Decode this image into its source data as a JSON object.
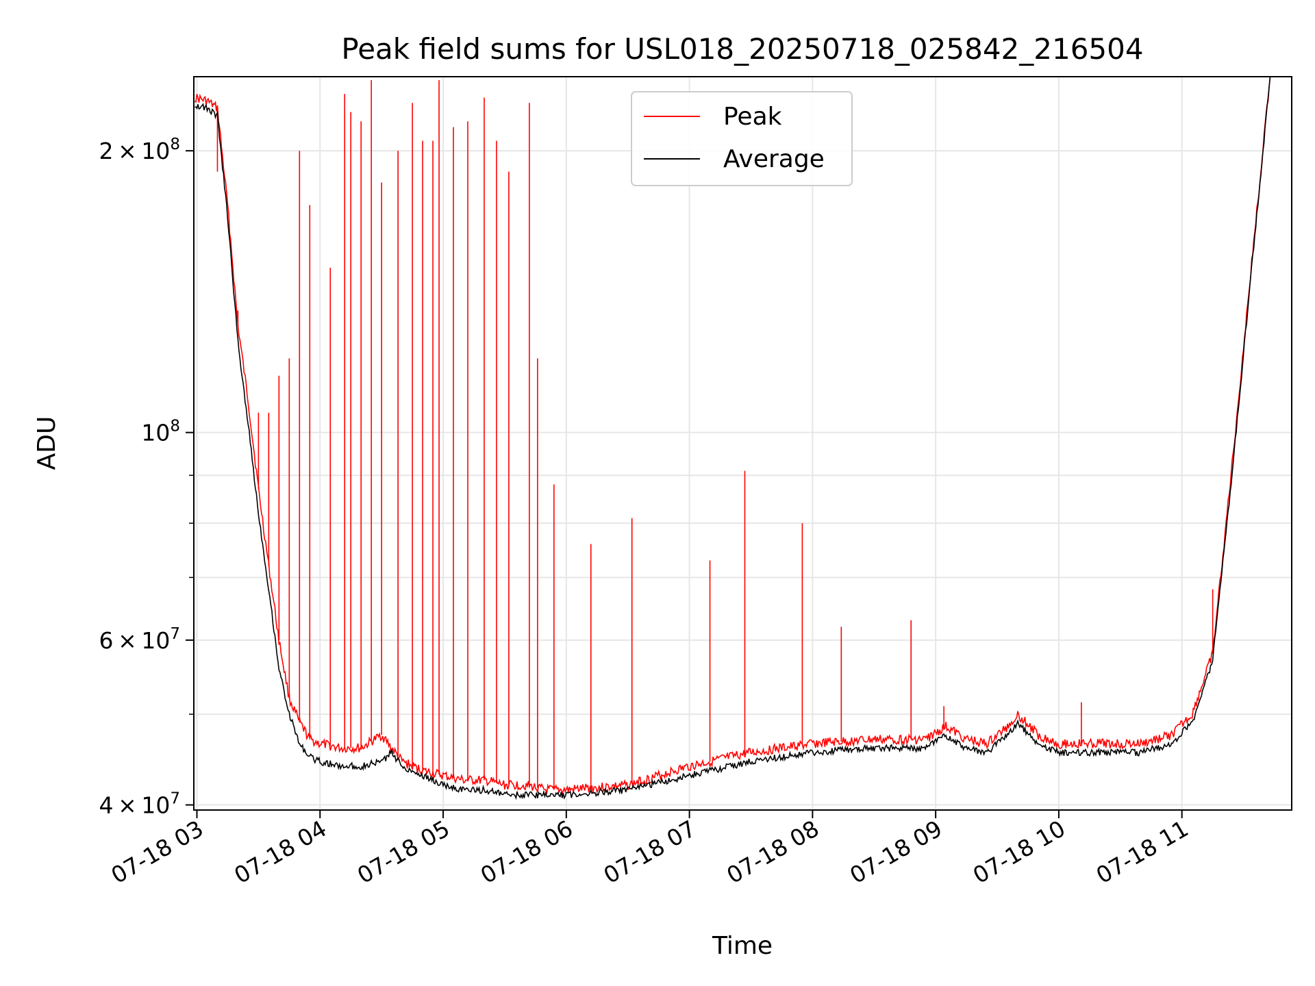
{
  "chart_data": {
    "type": "line",
    "title": "Peak field sums for USL018_20250718_025842_216504",
    "xlabel": "Time",
    "ylabel": "ADU",
    "x_axis_type": "datetime",
    "y_scale": "log",
    "xlim": [
      "2025-07-18T02:58:30",
      "2025-07-18T11:53:30"
    ],
    "ylim": [
      39500000,
      240000000
    ],
    "x_ticks": [
      {
        "value": "2025-07-18T03:00:00",
        "label": "07-18 03"
      },
      {
        "value": "2025-07-18T04:00:00",
        "label": "07-18 04"
      },
      {
        "value": "2025-07-18T05:00:00",
        "label": "07-18 05"
      },
      {
        "value": "2025-07-18T06:00:00",
        "label": "07-18 06"
      },
      {
        "value": "2025-07-18T07:00:00",
        "label": "07-18 07"
      },
      {
        "value": "2025-07-18T08:00:00",
        "label": "07-18 08"
      },
      {
        "value": "2025-07-18T09:00:00",
        "label": "07-18 09"
      },
      {
        "value": "2025-07-18T10:00:00",
        "label": "07-18 10"
      },
      {
        "value": "2025-07-18T11:00:00",
        "label": "07-18 11"
      }
    ],
    "y_ticks": [
      {
        "value": 40000000,
        "mantissa": "4",
        "exponent": "7"
      },
      {
        "value": 60000000,
        "mantissa": "6",
        "exponent": "7"
      },
      {
        "value": 100000000,
        "mantissa": "",
        "exponent": "8"
      },
      {
        "value": 200000000,
        "mantissa": "2",
        "exponent": "8"
      }
    ],
    "y_tick_base": "10",
    "y_tick_times": "×",
    "y_minor_ticks": [
      50000000,
      70000000,
      80000000,
      90000000
    ],
    "grid": true,
    "legend_position": "top-center",
    "series": [
      {
        "name": "Peak",
        "color": "#ff0000",
        "x": [
          "2025-07-18T02:59:00",
          "2025-07-18T03:05:00",
          "2025-07-18T03:10:00",
          "2025-07-18T03:15:00",
          "2025-07-18T03:20:00",
          "2025-07-18T03:25:00",
          "2025-07-18T03:30:00",
          "2025-07-18T03:35:00",
          "2025-07-18T03:40:00",
          "2025-07-18T03:45:00",
          "2025-07-18T03:50:00",
          "2025-07-18T03:55:00",
          "2025-07-18T04:00:00",
          "2025-07-18T04:10:00",
          "2025-07-18T04:20:00",
          "2025-07-18T04:30:00",
          "2025-07-18T04:40:00",
          "2025-07-18T04:50:00",
          "2025-07-18T05:00:00",
          "2025-07-18T05:10:00",
          "2025-07-18T05:20:00",
          "2025-07-18T05:30:00",
          "2025-07-18T05:40:00",
          "2025-07-18T05:50:00",
          "2025-07-18T06:00:00",
          "2025-07-18T06:30:00",
          "2025-07-18T07:00:00",
          "2025-07-18T07:30:00",
          "2025-07-18T08:00:00",
          "2025-07-18T08:30:00",
          "2025-07-18T08:55:00",
          "2025-07-18T09:05:00",
          "2025-07-18T09:15:00",
          "2025-07-18T09:25:00",
          "2025-07-18T09:35:00",
          "2025-07-18T09:40:00",
          "2025-07-18T09:50:00",
          "2025-07-18T10:00:00",
          "2025-07-18T10:20:00",
          "2025-07-18T10:40:00",
          "2025-07-18T10:55:00",
          "2025-07-18T11:05:00",
          "2025-07-18T11:15:00",
          "2025-07-18T11:25:00",
          "2025-07-18T11:35:00",
          "2025-07-18T11:43:00"
        ],
        "values": [
          228000000,
          226000000,
          222000000,
          175000000,
          130000000,
          108000000,
          87000000,
          72000000,
          60000000,
          52000000,
          49000000,
          47000000,
          46500000,
          46000000,
          46000000,
          47500000,
          44500000,
          43500000,
          43000000,
          42500000,
          42500000,
          42000000,
          42000000,
          41500000,
          41500000,
          42000000,
          44000000,
          45500000,
          46500000,
          47000000,
          47000000,
          48500000,
          47000000,
          46500000,
          48500000,
          50000000,
          47500000,
          46500000,
          46500000,
          46500000,
          47500000,
          50000000,
          58000000,
          95000000,
          160000000,
          240000000
        ],
        "spikes": [
          {
            "x": "2025-07-18T03:10:00",
            "y": 190000000
          },
          {
            "x": "2025-07-18T03:20:00",
            "y": 135000000
          },
          {
            "x": "2025-07-18T03:30:00",
            "y": 105000000
          },
          {
            "x": "2025-07-18T03:35:00",
            "y": 105000000
          },
          {
            "x": "2025-07-18T03:40:00",
            "y": 115000000
          },
          {
            "x": "2025-07-18T03:45:00",
            "y": 120000000
          },
          {
            "x": "2025-07-18T03:50:00",
            "y": 200000000
          },
          {
            "x": "2025-07-18T03:55:00",
            "y": 175000000
          },
          {
            "x": "2025-07-18T04:05:00",
            "y": 150000000
          },
          {
            "x": "2025-07-18T04:12:00",
            "y": 230000000
          },
          {
            "x": "2025-07-18T04:15:00",
            "y": 220000000
          },
          {
            "x": "2025-07-18T04:20:00",
            "y": 215000000
          },
          {
            "x": "2025-07-18T04:25:00",
            "y": 238000000
          },
          {
            "x": "2025-07-18T04:30:00",
            "y": 185000000
          },
          {
            "x": "2025-07-18T04:38:00",
            "y": 200000000
          },
          {
            "x": "2025-07-18T04:45:00",
            "y": 225000000
          },
          {
            "x": "2025-07-18T04:50:00",
            "y": 205000000
          },
          {
            "x": "2025-07-18T04:55:00",
            "y": 205000000
          },
          {
            "x": "2025-07-18T04:58:00",
            "y": 238000000
          },
          {
            "x": "2025-07-18T05:05:00",
            "y": 212000000
          },
          {
            "x": "2025-07-18T05:12:00",
            "y": 215000000
          },
          {
            "x": "2025-07-18T05:20:00",
            "y": 228000000
          },
          {
            "x": "2025-07-18T05:26:00",
            "y": 205000000
          },
          {
            "x": "2025-07-18T05:32:00",
            "y": 190000000
          },
          {
            "x": "2025-07-18T05:42:00",
            "y": 225000000
          },
          {
            "x": "2025-07-18T05:46:00",
            "y": 120000000
          },
          {
            "x": "2025-07-18T05:54:00",
            "y": 88000000
          },
          {
            "x": "2025-07-18T06:12:00",
            "y": 76000000
          },
          {
            "x": "2025-07-18T06:32:00",
            "y": 81000000
          },
          {
            "x": "2025-07-18T07:10:00",
            "y": 73000000
          },
          {
            "x": "2025-07-18T07:27:00",
            "y": 91000000
          },
          {
            "x": "2025-07-18T07:55:00",
            "y": 80000000
          },
          {
            "x": "2025-07-18T08:14:00",
            "y": 62000000
          },
          {
            "x": "2025-07-18T08:48:00",
            "y": 63000000
          },
          {
            "x": "2025-07-18T09:04:00",
            "y": 51000000
          },
          {
            "x": "2025-07-18T10:11:00",
            "y": 51500000
          },
          {
            "x": "2025-07-18T11:15:00",
            "y": 68000000
          }
        ]
      },
      {
        "name": "Average",
        "color": "#000000",
        "x": [
          "2025-07-18T02:59:00",
          "2025-07-18T03:05:00",
          "2025-07-18T03:10:00",
          "2025-07-18T03:15:00",
          "2025-07-18T03:20:00",
          "2025-07-18T03:25:00",
          "2025-07-18T03:30:00",
          "2025-07-18T03:35:00",
          "2025-07-18T03:40:00",
          "2025-07-18T03:45:00",
          "2025-07-18T03:50:00",
          "2025-07-18T03:55:00",
          "2025-07-18T04:00:00",
          "2025-07-18T04:10:00",
          "2025-07-18T04:20:00",
          "2025-07-18T04:30:00",
          "2025-07-18T04:35:00",
          "2025-07-18T04:40:00",
          "2025-07-18T04:50:00",
          "2025-07-18T05:00:00",
          "2025-07-18T05:10:00",
          "2025-07-18T05:20:00",
          "2025-07-18T05:30:00",
          "2025-07-18T05:40:00",
          "2025-07-18T05:50:00",
          "2025-07-18T06:00:00",
          "2025-07-18T06:30:00",
          "2025-07-18T07:00:00",
          "2025-07-18T07:30:00",
          "2025-07-18T08:00:00",
          "2025-07-18T08:30:00",
          "2025-07-18T08:55:00",
          "2025-07-18T09:05:00",
          "2025-07-18T09:15:00",
          "2025-07-18T09:25:00",
          "2025-07-18T09:35:00",
          "2025-07-18T09:40:00",
          "2025-07-18T09:50:00",
          "2025-07-18T10:00:00",
          "2025-07-18T10:20:00",
          "2025-07-18T10:40:00",
          "2025-07-18T10:55:00",
          "2025-07-18T11:05:00",
          "2025-07-18T11:15:00",
          "2025-07-18T11:25:00",
          "2025-07-18T11:35:00",
          "2025-07-18T11:43:00"
        ],
        "values": [
          224000000,
          222000000,
          218000000,
          170000000,
          125000000,
          102000000,
          82000000,
          68000000,
          56000000,
          50000000,
          46500000,
          45000000,
          44500000,
          44000000,
          44000000,
          44500000,
          45500000,
          44000000,
          43000000,
          42000000,
          41500000,
          41500000,
          41000000,
          41000000,
          41000000,
          41000000,
          41500000,
          43000000,
          44500000,
          45500000,
          46000000,
          46000000,
          47500000,
          46000000,
          45500000,
          47500000,
          49000000,
          46500000,
          45500000,
          45500000,
          45500000,
          46500000,
          49000000,
          57000000,
          93000000,
          158000000,
          240000000
        ]
      }
    ]
  }
}
